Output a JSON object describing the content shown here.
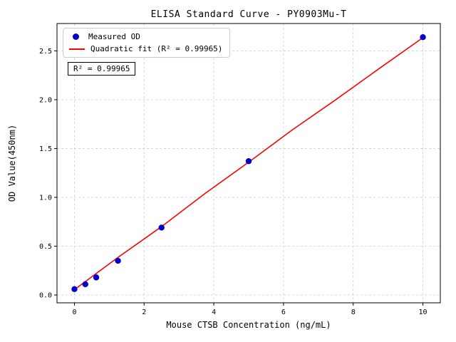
{
  "figure": {
    "title": "ELISA Standard Curve - PY0903Mu-T",
    "xlabel": "Mouse CTSB Concentration (ng/mL)",
    "ylabel": "OD Value(450nm)",
    "annotation": "R² = 0.99965"
  },
  "chart_data": {
    "type": "scatter",
    "title": "ELISA Standard Curve - PY0903Mu-T",
    "xlabel": "Mouse CTSB Concentration (ng/mL)",
    "ylabel": "OD Value(450nm)",
    "xlim": [
      -0.5,
      10.5
    ],
    "ylim": [
      -0.08,
      2.78
    ],
    "xticks": [
      0,
      2,
      4,
      6,
      8,
      10
    ],
    "xtick_labels": [
      "0",
      "2",
      "4",
      "6",
      "8",
      "10"
    ],
    "yticks": [
      0,
      0.5,
      1.0,
      1.5,
      2.0,
      2.5
    ],
    "ytick_labels": [
      "0.0",
      "0.5",
      "1.0",
      "1.5",
      "2.0",
      "2.5"
    ],
    "grid": true,
    "legend": {
      "position": "upper-left",
      "entries": [
        {
          "label": "Measured OD",
          "type": "point",
          "color": "#0000cd"
        },
        {
          "label": "Quadratic fit (R² = 0.99965)",
          "type": "line",
          "color": "#ff0000"
        }
      ]
    },
    "annotation": "R² = 0.99965",
    "r_squared": 0.99965,
    "series": [
      {
        "name": "Measured OD",
        "type": "scatter",
        "color": "#0000cd",
        "x": [
          0,
          0.3125,
          0.625,
          1.25,
          2.5,
          5,
          10
        ],
        "y": [
          0.06,
          0.11,
          0.18,
          0.35,
          0.69,
          1.37,
          2.64
        ]
      },
      {
        "name": "Quadratic fit",
        "type": "line",
        "color": "#ff0000",
        "x": [
          0,
          1.25,
          2.5,
          3.75,
          5,
          6.25,
          7.5,
          8.75,
          10
        ],
        "y": [
          0.055,
          0.385,
          0.7,
          1.04,
          1.36,
          1.69,
          2.0,
          2.32,
          2.635
        ]
      }
    ]
  }
}
